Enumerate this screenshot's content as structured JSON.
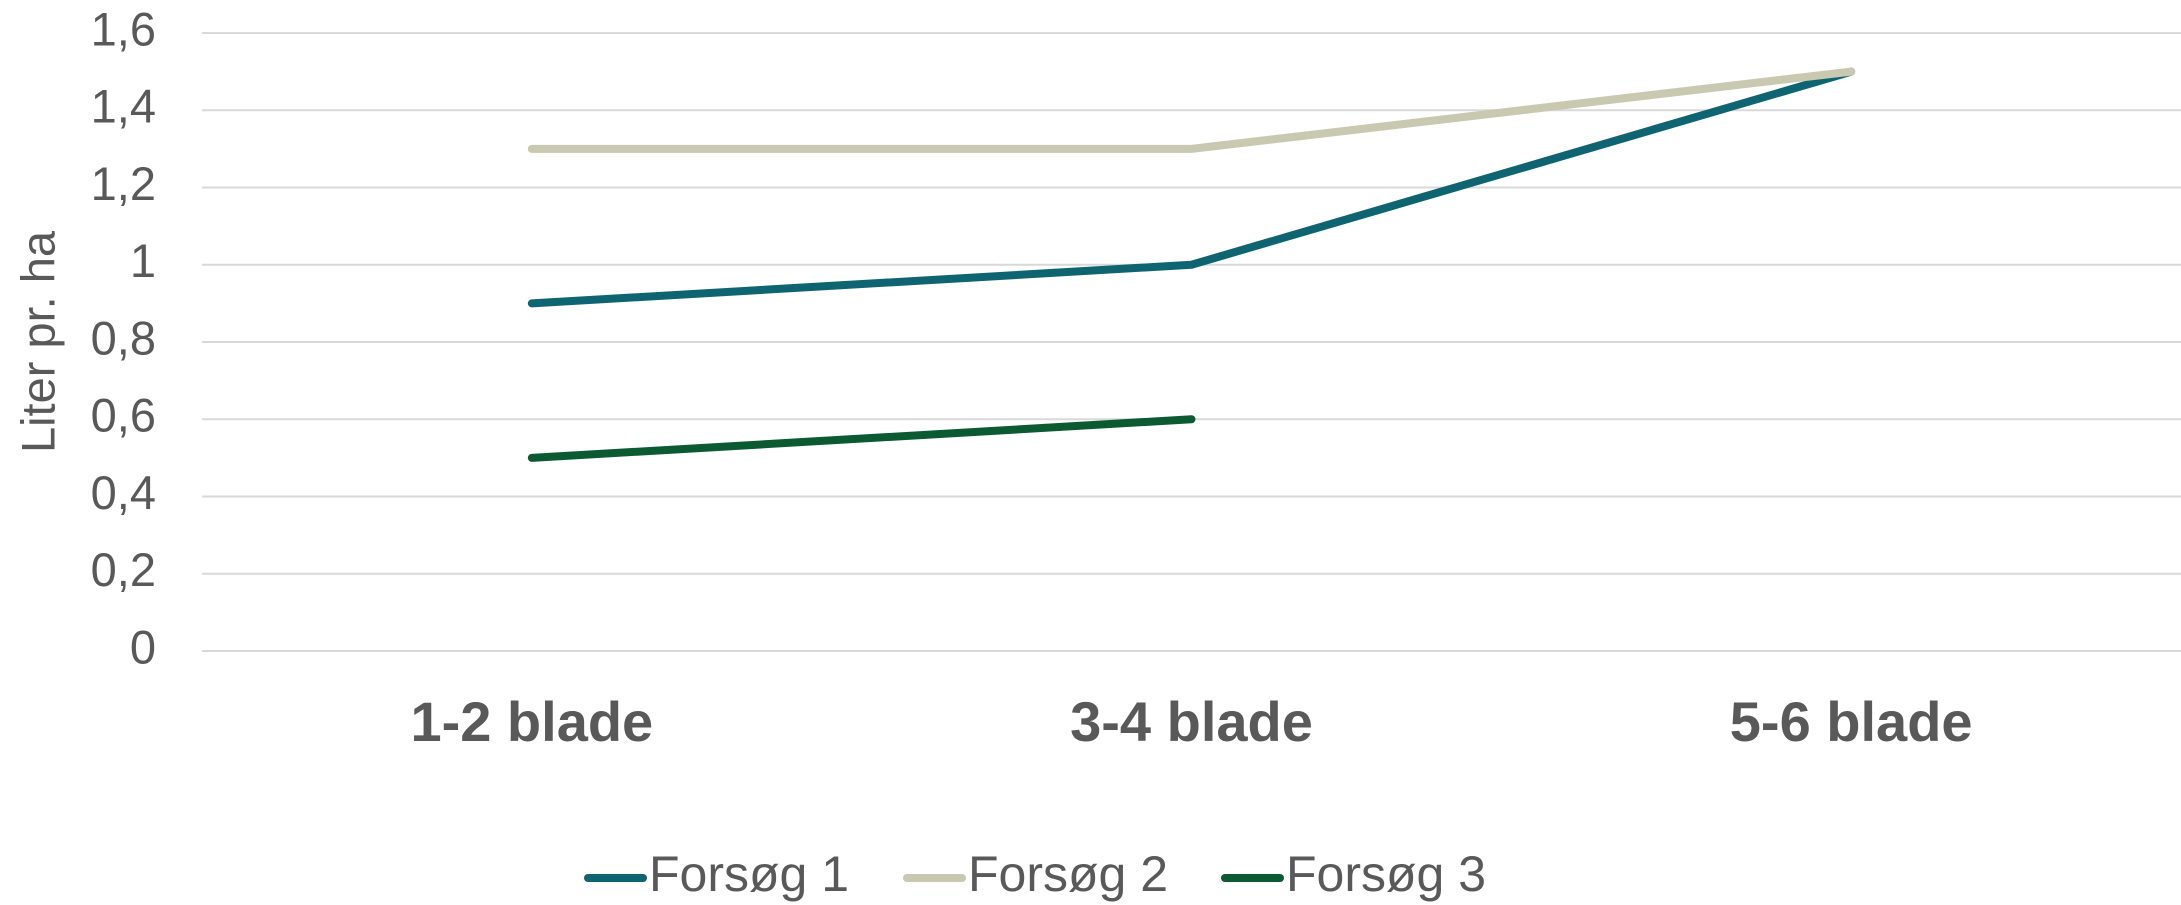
{
  "chart_data": {
    "type": "line",
    "y_label": "Liter pr. ha",
    "categories": [
      "1-2 blade",
      "3-4 blade",
      "5-6 blade"
    ],
    "series": [
      {
        "name": "Forsøg 1",
        "color": "#0e6470",
        "values": [
          0.9,
          1.0,
          1.5
        ]
      },
      {
        "name": "Forsøg 2",
        "color": "#c9c8b1",
        "values": [
          1.3,
          1.3,
          1.5
        ]
      },
      {
        "name": "Forsøg 3",
        "color": "#0c5a32",
        "values": [
          0.5,
          0.6,
          null
        ]
      }
    ],
    "ylim": [
      0,
      1.6
    ],
    "yticks": [
      0,
      {
        "value": 0.2,
        "label": "0,2"
      },
      {
        "value": 0.4,
        "label": "0,4"
      },
      {
        "value": 0.6,
        "label": "0,6"
      },
      {
        "value": 0.8,
        "label": "0,8"
      },
      1,
      {
        "value": 1.2,
        "label": "1,2"
      },
      {
        "value": 1.4,
        "label": "1,4"
      },
      {
        "value": 1.6,
        "label": "1,6"
      }
    ],
    "grid": true,
    "legend": "bottom"
  }
}
